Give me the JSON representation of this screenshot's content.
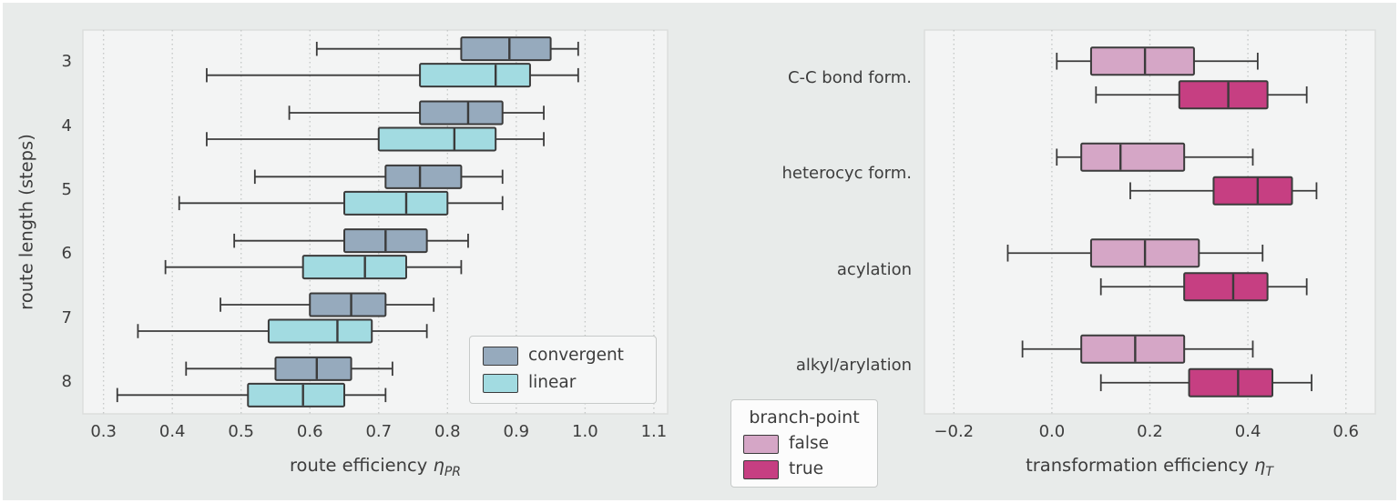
{
  "style": {
    "figure_bg": "#e8ebea",
    "plot_bg": "#f3f4f4",
    "plot_border": "#dcdedd",
    "grid_color": "#c6c9c8",
    "box_edge_color": "#3b3b3b",
    "text_color": "#3d3d3d"
  },
  "chart_data": [
    {
      "type": "box",
      "orientation": "horizontal",
      "xlabel": "route efficiency η_PR",
      "xlabel_text": "route efficiency",
      "xlabel_symbol": "η",
      "xlabel_sub": "PR",
      "ylabel": "route length (steps)",
      "xlim": [
        0.27,
        1.12
      ],
      "xticks": [
        0.3,
        0.4,
        0.5,
        0.6,
        0.7,
        0.8,
        0.9,
        1.0,
        1.1
      ],
      "xtick_labels": [
        "0.3",
        "0.4",
        "0.5",
        "0.6",
        "0.7",
        "0.8",
        "0.9",
        "1.0",
        "1.1"
      ],
      "categories": [
        "3",
        "4",
        "5",
        "6",
        "7",
        "8"
      ],
      "grid": "vertical-dotted",
      "legend_position": "lower-right-inside",
      "series": [
        {
          "name": "convergent",
          "color": "#96aabd",
          "boxes": [
            {
              "whislo": 0.61,
              "q1": 0.82,
              "med": 0.89,
              "q3": 0.95,
              "whishi": 0.99
            },
            {
              "whislo": 0.57,
              "q1": 0.76,
              "med": 0.83,
              "q3": 0.88,
              "whishi": 0.94
            },
            {
              "whislo": 0.52,
              "q1": 0.71,
              "med": 0.76,
              "q3": 0.82,
              "whishi": 0.88
            },
            {
              "whislo": 0.49,
              "q1": 0.65,
              "med": 0.71,
              "q3": 0.77,
              "whishi": 0.83
            },
            {
              "whislo": 0.47,
              "q1": 0.6,
              "med": 0.66,
              "q3": 0.71,
              "whishi": 0.78
            },
            {
              "whislo": 0.42,
              "q1": 0.55,
              "med": 0.61,
              "q3": 0.66,
              "whishi": 0.72
            }
          ]
        },
        {
          "name": "linear",
          "color": "#a2dbe1",
          "boxes": [
            {
              "whislo": 0.45,
              "q1": 0.76,
              "med": 0.87,
              "q3": 0.92,
              "whishi": 0.99
            },
            {
              "whislo": 0.45,
              "q1": 0.7,
              "med": 0.81,
              "q3": 0.87,
              "whishi": 0.94
            },
            {
              "whislo": 0.41,
              "q1": 0.65,
              "med": 0.74,
              "q3": 0.8,
              "whishi": 0.88
            },
            {
              "whislo": 0.39,
              "q1": 0.59,
              "med": 0.68,
              "q3": 0.74,
              "whishi": 0.82
            },
            {
              "whislo": 0.35,
              "q1": 0.54,
              "med": 0.64,
              "q3": 0.69,
              "whishi": 0.77
            },
            {
              "whislo": 0.32,
              "q1": 0.51,
              "med": 0.59,
              "q3": 0.65,
              "whishi": 0.71
            }
          ]
        }
      ]
    },
    {
      "type": "box",
      "orientation": "horizontal",
      "xlabel": "transformation efficiency η_T",
      "xlabel_text": "transformation efficiency",
      "xlabel_symbol": "η",
      "xlabel_sub": "T",
      "ylabel": "",
      "xlim": [
        -0.26,
        0.66
      ],
      "xticks": [
        -0.2,
        0.0,
        0.2,
        0.4,
        0.6
      ],
      "xtick_labels": [
        "−0.2",
        "0.0",
        "0.2",
        "0.4",
        "0.6"
      ],
      "categories": [
        "C-C bond form.",
        "heterocyc form.",
        "acylation",
        "alkyl/arylation"
      ],
      "grid": "vertical-dotted",
      "legend_title": "branch-point",
      "legend_position": "lower-left-outside",
      "series": [
        {
          "name": "false",
          "color": "#d5a6c6",
          "boxes": [
            {
              "whislo": 0.01,
              "q1": 0.08,
              "med": 0.19,
              "q3": 0.29,
              "whishi": 0.42
            },
            {
              "whislo": 0.01,
              "q1": 0.06,
              "med": 0.14,
              "q3": 0.27,
              "whishi": 0.41
            },
            {
              "whislo": -0.09,
              "q1": 0.08,
              "med": 0.19,
              "q3": 0.3,
              "whishi": 0.43
            },
            {
              "whislo": -0.06,
              "q1": 0.06,
              "med": 0.17,
              "q3": 0.27,
              "whishi": 0.41
            }
          ]
        },
        {
          "name": "true",
          "color": "#c63f82",
          "boxes": [
            {
              "whislo": 0.09,
              "q1": 0.26,
              "med": 0.36,
              "q3": 0.44,
              "whishi": 0.52
            },
            {
              "whislo": 0.16,
              "q1": 0.33,
              "med": 0.42,
              "q3": 0.49,
              "whishi": 0.54
            },
            {
              "whislo": 0.1,
              "q1": 0.27,
              "med": 0.37,
              "q3": 0.44,
              "whishi": 0.52
            },
            {
              "whislo": 0.1,
              "q1": 0.28,
              "med": 0.38,
              "q3": 0.45,
              "whishi": 0.53
            }
          ]
        }
      ]
    }
  ]
}
